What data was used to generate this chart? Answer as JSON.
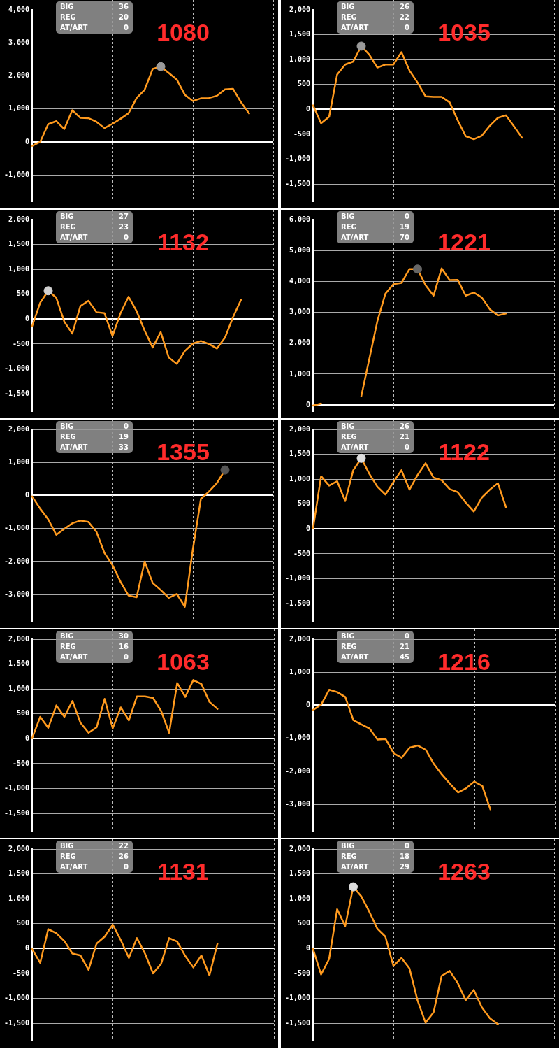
{
  "chart_data": [
    {
      "type": "line",
      "title": "1080",
      "annotations": [
        "BIG",
        "36",
        "REG",
        "20",
        "AT/ART",
        "0"
      ],
      "categories": [
        null,
        null,
        null,
        null,
        null,
        null,
        null,
        null,
        null,
        null,
        null,
        null,
        null,
        null,
        null,
        null,
        null,
        null,
        null,
        null,
        null,
        null,
        null,
        null,
        null,
        null,
        null,
        null,
        null,
        null,
        null
      ],
      "ylim": [
        -1800,
        4000
      ],
      "yticks": [
        {
          "value": -1000,
          "label": "-1,000"
        },
        {
          "value": 0,
          "label": "0"
        },
        {
          "value": 1000,
          "label": "1,000"
        },
        {
          "value": 2000,
          "label": "2,000"
        },
        {
          "value": 3000,
          "label": "3,000"
        },
        {
          "value": 4000,
          "label": "4,000"
        }
      ],
      "tick_labels": "y",
      "grid": true,
      "series": [
        {
          "color": "#ff9a1e",
          "values": [
            -120,
            0,
            540,
            630,
            390,
            960,
            730,
            720,
            610,
            420,
            550,
            700,
            870,
            1330,
            1580,
            2210,
            2280,
            2090,
            1890,
            1430,
            1240,
            1320,
            1330,
            1400,
            1590,
            1610,
            1200,
            860,
            null,
            null,
            null
          ]
        },
        {
          "type": "scatter",
          "color": "#9a9a9a",
          "values": [
            null,
            null,
            null,
            null,
            null,
            null,
            null,
            null,
            null,
            null,
            null,
            null,
            null,
            null,
            null,
            null,
            2280,
            null,
            null,
            null,
            null,
            null,
            null,
            null,
            null,
            null,
            null,
            null,
            null,
            null,
            null
          ]
        }
      ]
    },
    {
      "type": "line",
      "title": "1035",
      "annotations": [
        "BIG",
        "26",
        "REG",
        "22",
        "AT/ART",
        "0"
      ],
      "categories": [
        null,
        null,
        null,
        null,
        null,
        null,
        null,
        null,
        null,
        null,
        null,
        null,
        null,
        null,
        null,
        null,
        null,
        null,
        null,
        null,
        null,
        null,
        null,
        null,
        null,
        null,
        null,
        null,
        null,
        null,
        null
      ],
      "ylim": [
        -1850,
        2000
      ],
      "yticks": [
        {
          "value": -1500,
          "label": "-1,500"
        },
        {
          "value": -1000,
          "label": "-1,000"
        },
        {
          "value": -500,
          "label": "-500"
        },
        {
          "value": 0,
          "label": "0"
        },
        {
          "value": 500,
          "label": "500"
        },
        {
          "value": 1000,
          "label": "1,000"
        },
        {
          "value": 1500,
          "label": "1,500"
        },
        {
          "value": 2000,
          "label": "2,000"
        }
      ],
      "tick_labels": "y",
      "grid": true,
      "series": [
        {
          "color": "#ff9a1e",
          "values": [
            80,
            -280,
            -150,
            700,
            900,
            960,
            1270,
            1100,
            840,
            900,
            900,
            1150,
            780,
            540,
            260,
            250,
            250,
            140,
            -220,
            -540,
            -600,
            -530,
            -330,
            -170,
            -120,
            -340,
            -570,
            null,
            null,
            null,
            null
          ]
        },
        {
          "type": "scatter",
          "color": "#9a9a9a",
          "values": [
            null,
            null,
            null,
            null,
            null,
            null,
            1270,
            null,
            null,
            null,
            null,
            null,
            null,
            null,
            null,
            null,
            null,
            null,
            null,
            null,
            null,
            null,
            null,
            null,
            null,
            null,
            null,
            null,
            null,
            null,
            null
          ]
        }
      ]
    },
    {
      "type": "line",
      "title": "1132",
      "annotations": [
        "BIG",
        "27",
        "REG",
        "23",
        "AT/ART",
        "0"
      ],
      "categories": [
        null,
        null,
        null,
        null,
        null,
        null,
        null,
        null,
        null,
        null,
        null,
        null,
        null,
        null,
        null,
        null,
        null,
        null,
        null,
        null,
        null,
        null,
        null,
        null,
        null,
        null,
        null,
        null,
        null,
        null,
        null
      ],
      "ylim": [
        -1850,
        2000
      ],
      "yticks": [
        {
          "value": -1500,
          "label": "-1,500"
        },
        {
          "value": -1000,
          "label": "-1,000"
        },
        {
          "value": -500,
          "label": "-500"
        },
        {
          "value": 0,
          "label": "0"
        },
        {
          "value": 500,
          "label": "500"
        },
        {
          "value": 1000,
          "label": "1,000"
        },
        {
          "value": 1500,
          "label": "1,500"
        },
        {
          "value": 2000,
          "label": "2,000"
        }
      ],
      "tick_labels": "y",
      "grid": true,
      "series": [
        {
          "color": "#ff9a1e",
          "values": [
            -140,
            330,
            570,
            430,
            -50,
            -290,
            260,
            370,
            140,
            120,
            -340,
            120,
            450,
            160,
            -230,
            -570,
            -260,
            -770,
            -900,
            -640,
            -490,
            -440,
            -500,
            -590,
            -370,
            40,
            390,
            null,
            null,
            null,
            null
          ]
        },
        {
          "type": "scatter",
          "color": "#d0d0d0",
          "values": [
            null,
            null,
            570,
            null,
            null,
            null,
            null,
            null,
            null,
            null,
            null,
            null,
            null,
            null,
            null,
            null,
            null,
            null,
            null,
            null,
            null,
            null,
            null,
            null,
            null,
            null,
            null,
            null,
            null,
            null,
            null
          ]
        }
      ]
    },
    {
      "type": "line",
      "title": "1221",
      "annotations": [
        "BIG",
        "0",
        "REG",
        "19",
        "AT/ART",
        "70"
      ],
      "categories": [
        null,
        null,
        null,
        null,
        null,
        null,
        null,
        null,
        null,
        null,
        null,
        null,
        null,
        null,
        null,
        null,
        null,
        null,
        null,
        null,
        null,
        null,
        null,
        null,
        null,
        null,
        null,
        null,
        null,
        null,
        null
      ],
      "ylim": [
        -200,
        6000
      ],
      "yticks": [
        {
          "value": 0,
          "label": "0"
        },
        {
          "value": 1000,
          "label": "1,000"
        },
        {
          "value": 2000,
          "label": "2,000"
        },
        {
          "value": 3000,
          "label": "3,000"
        },
        {
          "value": 4000,
          "label": "4,000"
        },
        {
          "value": 5000,
          "label": "5,000"
        },
        {
          "value": 6000,
          "label": "6,000"
        }
      ],
      "tick_labels": "y",
      "grid": true,
      "series": [
        {
          "color": "#ff9a1e",
          "values": [
            -20,
            50,
            null,
            null,
            null,
            null,
            280,
            1490,
            2710,
            3600,
            3910,
            3950,
            4400,
            4400,
            3880,
            3540,
            4420,
            4040,
            4050,
            3540,
            3640,
            3480,
            3100,
            2900,
            2960,
            null,
            null,
            null,
            null,
            null,
            null
          ]
        },
        {
          "type": "scatter",
          "color": "#666666",
          "values": [
            null,
            null,
            null,
            null,
            null,
            null,
            null,
            null,
            null,
            null,
            null,
            null,
            null,
            4400,
            null,
            null,
            null,
            null,
            null,
            null,
            null,
            null,
            null,
            null,
            null,
            null,
            null,
            null,
            null,
            null,
            null
          ]
        }
      ]
    },
    {
      "type": "line",
      "title": "1355",
      "annotations": [
        "BIG",
        "0",
        "REG",
        "19",
        "AT/ART",
        "33"
      ],
      "categories": [
        null,
        null,
        null,
        null,
        null,
        null,
        null,
        null,
        null,
        null,
        null,
        null,
        null,
        null,
        null,
        null,
        null,
        null,
        null,
        null,
        null,
        null,
        null,
        null,
        null,
        null,
        null,
        null,
        null,
        null,
        null
      ],
      "ylim": [
        -3800,
        2000
      ],
      "yticks": [
        {
          "value": -3000,
          "label": "-3,000"
        },
        {
          "value": -2000,
          "label": "-2,000"
        },
        {
          "value": -1000,
          "label": "-1,000"
        },
        {
          "value": 0,
          "label": "0"
        },
        {
          "value": 1000,
          "label": "1,000"
        },
        {
          "value": 2000,
          "label": "2,000"
        }
      ],
      "tick_labels": "y",
      "grid": true,
      "series": [
        {
          "color": "#ff9a1e",
          "values": [
            -30,
            -400,
            -720,
            -1190,
            -1010,
            -840,
            -760,
            -800,
            -1100,
            -1740,
            -2110,
            -2610,
            -3030,
            -3080,
            -2000,
            -2650,
            -2860,
            -3100,
            -2980,
            -3370,
            -1630,
            -100,
            120,
            380,
            770,
            null,
            null,
            null,
            null,
            null,
            null
          ]
        },
        {
          "type": "scatter",
          "color": "#555555",
          "values": [
            null,
            null,
            null,
            null,
            null,
            null,
            null,
            null,
            null,
            null,
            null,
            null,
            null,
            null,
            null,
            null,
            null,
            null,
            null,
            null,
            null,
            null,
            null,
            null,
            770,
            null,
            null,
            null,
            null,
            null,
            null
          ]
        }
      ]
    },
    {
      "type": "line",
      "title": "1122",
      "annotations": [
        "BIG",
        "26",
        "REG",
        "21",
        "AT/ART",
        "0"
      ],
      "categories": [
        null,
        null,
        null,
        null,
        null,
        null,
        null,
        null,
        null,
        null,
        null,
        null,
        null,
        null,
        null,
        null,
        null,
        null,
        null,
        null,
        null,
        null,
        null,
        null,
        null,
        null,
        null,
        null,
        null,
        null,
        null
      ],
      "ylim": [
        -1850,
        2000
      ],
      "yticks": [
        {
          "value": -1500,
          "label": "-1,500"
        },
        {
          "value": -1000,
          "label": "-1,000"
        },
        {
          "value": -500,
          "label": "-500"
        },
        {
          "value": 0,
          "label": "0"
        },
        {
          "value": 500,
          "label": "500"
        },
        {
          "value": 1000,
          "label": "1,000"
        },
        {
          "value": 1500,
          "label": "1,500"
        },
        {
          "value": 2000,
          "label": "2,000"
        }
      ],
      "tick_labels": "y",
      "grid": true,
      "series": [
        {
          "color": "#ff9a1e",
          "values": [
            10,
            1060,
            870,
            960,
            560,
            1180,
            1420,
            1110,
            850,
            690,
            940,
            1180,
            790,
            1080,
            1320,
            1030,
            980,
            800,
            740,
            530,
            350,
            630,
            790,
            920,
            440,
            null,
            null,
            null,
            null,
            null,
            null
          ]
        },
        {
          "type": "scatter",
          "color": "#dddddd",
          "values": [
            null,
            null,
            null,
            null,
            null,
            null,
            1420,
            null,
            null,
            null,
            null,
            null,
            null,
            null,
            null,
            null,
            null,
            null,
            null,
            null,
            null,
            null,
            null,
            null,
            null,
            null,
            null,
            null,
            null,
            null,
            null
          ]
        }
      ]
    },
    {
      "type": "line",
      "title": "1063",
      "annotations": [
        "BIG",
        "30",
        "REG",
        "16",
        "AT/ART",
        "0"
      ],
      "categories": [
        null,
        null,
        null,
        null,
        null,
        null,
        null,
        null,
        null,
        null,
        null,
        null,
        null,
        null,
        null,
        null,
        null,
        null,
        null,
        null,
        null,
        null,
        null,
        null,
        null,
        null,
        null,
        null,
        null,
        null,
        null
      ],
      "ylim": [
        -1850,
        2000
      ],
      "yticks": [
        {
          "value": -1500,
          "label": "-1,500"
        },
        {
          "value": -1000,
          "label": "-1,000"
        },
        {
          "value": -500,
          "label": "-500"
        },
        {
          "value": 0,
          "label": "0"
        },
        {
          "value": 500,
          "label": "500"
        },
        {
          "value": 1000,
          "label": "1,000"
        },
        {
          "value": 1500,
          "label": "1,500"
        },
        {
          "value": 2000,
          "label": "2,000"
        }
      ],
      "tick_labels": "y",
      "grid": true,
      "series": [
        {
          "color": "#ff9a1e",
          "values": [
            10,
            440,
            220,
            670,
            440,
            760,
            320,
            120,
            230,
            800,
            210,
            630,
            370,
            850,
            850,
            820,
            560,
            120,
            1120,
            840,
            1180,
            1100,
            740,
            600,
            null,
            null,
            null,
            null,
            null,
            null,
            null
          ]
        }
      ]
    },
    {
      "type": "line",
      "title": "1216",
      "annotations": [
        "BIG",
        "0",
        "REG",
        "21",
        "AT/ART",
        "45"
      ],
      "categories": [
        null,
        null,
        null,
        null,
        null,
        null,
        null,
        null,
        null,
        null,
        null,
        null,
        null,
        null,
        null,
        null,
        null,
        null,
        null,
        null,
        null,
        null,
        null,
        null,
        null,
        null,
        null,
        null,
        null,
        null,
        null
      ],
      "ylim": [
        -3800,
        2000
      ],
      "yticks": [
        {
          "value": -3000,
          "label": "-3,000"
        },
        {
          "value": -2000,
          "label": "-2,000"
        },
        {
          "value": -1000,
          "label": "-1,000"
        },
        {
          "value": 0,
          "label": "0"
        },
        {
          "value": 1000,
          "label": "1,000"
        },
        {
          "value": 2000,
          "label": "2,000"
        }
      ],
      "tick_labels": "y",
      "grid": true,
      "series": [
        {
          "color": "#ff9a1e",
          "values": [
            -140,
            20,
            470,
            400,
            250,
            -450,
            -580,
            -700,
            -1040,
            -1020,
            -1450,
            -1590,
            -1280,
            -1220,
            -1350,
            -1780,
            -2100,
            -2380,
            -2640,
            -2510,
            -2310,
            -2440,
            -3150,
            null,
            null,
            null,
            null,
            null,
            null,
            null,
            null
          ]
        }
      ]
    },
    {
      "type": "line",
      "title": "1131",
      "annotations": [
        "BIG",
        "22",
        "REG",
        "26",
        "AT/ART",
        "0"
      ],
      "categories": [
        null,
        null,
        null,
        null,
        null,
        null,
        null,
        null,
        null,
        null,
        null,
        null,
        null,
        null,
        null,
        null,
        null,
        null,
        null,
        null,
        null,
        null,
        null,
        null,
        null,
        null,
        null,
        null,
        null,
        null,
        null
      ],
      "ylim": [
        -1850,
        2000
      ],
      "yticks": [
        {
          "value": -1500,
          "label": "-1,500"
        },
        {
          "value": -1000,
          "label": "-1,000"
        },
        {
          "value": -500,
          "label": "-500"
        },
        {
          "value": 0,
          "label": "0"
        },
        {
          "value": 500,
          "label": "500"
        },
        {
          "value": 1000,
          "label": "1,000"
        },
        {
          "value": 1500,
          "label": "1,500"
        },
        {
          "value": 2000,
          "label": "2,000"
        }
      ],
      "tick_labels": "y",
      "grid": true,
      "series": [
        {
          "color": "#ff9a1e",
          "values": [
            -10,
            -290,
            390,
            310,
            150,
            -100,
            -140,
            -430,
            100,
            240,
            480,
            170,
            -190,
            210,
            -100,
            -500,
            -310,
            210,
            140,
            -150,
            -380,
            -140,
            -540,
            100,
            null,
            null,
            null,
            null,
            null,
            null,
            null
          ]
        }
      ]
    },
    {
      "type": "line",
      "title": "1263",
      "annotations": [
        "BIG",
        "0",
        "REG",
        "18",
        "AT/ART",
        "29"
      ],
      "categories": [
        null,
        null,
        null,
        null,
        null,
        null,
        null,
        null,
        null,
        null,
        null,
        null,
        null,
        null,
        null,
        null,
        null,
        null,
        null,
        null,
        null,
        null,
        null,
        null,
        null,
        null,
        null,
        null,
        null,
        null,
        null
      ],
      "ylim": [
        -1850,
        2000
      ],
      "yticks": [
        {
          "value": -1500,
          "label": "-1,500"
        },
        {
          "value": -1000,
          "label": "-1,000"
        },
        {
          "value": -500,
          "label": "-500"
        },
        {
          "value": 0,
          "label": "0"
        },
        {
          "value": 500,
          "label": "500"
        },
        {
          "value": 1000,
          "label": "1,000"
        },
        {
          "value": 1500,
          "label": "1,500"
        },
        {
          "value": 2000,
          "label": "2,000"
        }
      ],
      "tick_labels": "y",
      "grid": true,
      "series": [
        {
          "color": "#ff9a1e",
          "values": [
            -10,
            -520,
            -210,
            790,
            450,
            1240,
            1050,
            740,
            400,
            240,
            -350,
            -190,
            -400,
            -1040,
            -1490,
            -1280,
            -550,
            -450,
            -690,
            -1040,
            -830,
            -1180,
            -1400,
            -1520,
            null,
            null,
            null,
            null,
            null,
            null,
            null
          ]
        },
        {
          "type": "scatter",
          "color": "#dddddd",
          "values": [
            null,
            null,
            null,
            null,
            null,
            1240,
            null,
            null,
            null,
            null,
            null,
            null,
            null,
            null,
            null,
            null,
            null,
            null,
            null,
            null,
            null,
            null,
            null,
            null,
            null,
            null,
            null,
            null,
            null,
            null,
            null
          ]
        }
      ]
    }
  ]
}
